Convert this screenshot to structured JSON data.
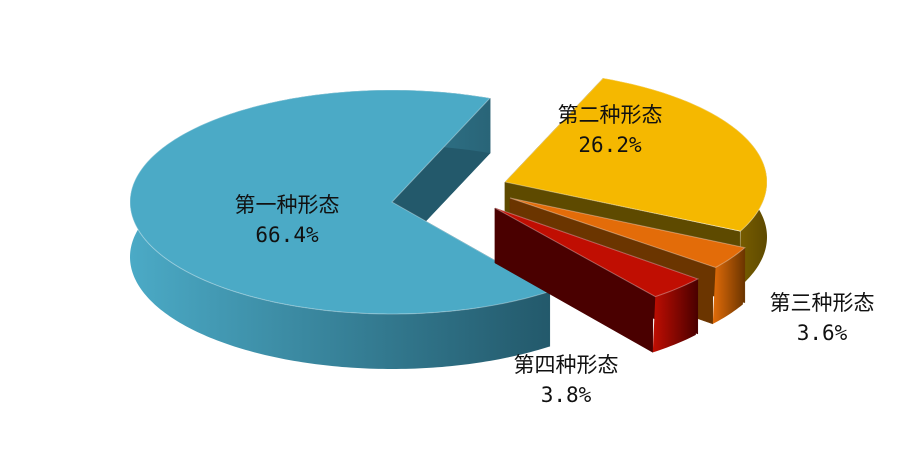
{
  "chart_data": {
    "type": "pie",
    "style": "3d-exploded",
    "title": "",
    "legend": "none",
    "slices": [
      {
        "label": "第二种形态",
        "value": 26.2,
        "value_label": "26.2%",
        "color": "#F5B800",
        "side_color": "#5E4A00"
      },
      {
        "label": "第三种形态",
        "value": 3.6,
        "value_label": "3.6%",
        "color": "#E36C09",
        "side_color": "#6B3500"
      },
      {
        "label": "第四种形态",
        "value": 3.8,
        "value_label": "3.8%",
        "color": "#C00E02",
        "side_color": "#4A0000"
      },
      {
        "label": "第一种形态",
        "value": 66.4,
        "value_label": "66.4%",
        "color": "#4BAAC6",
        "side_color": "#23596B"
      }
    ]
  }
}
